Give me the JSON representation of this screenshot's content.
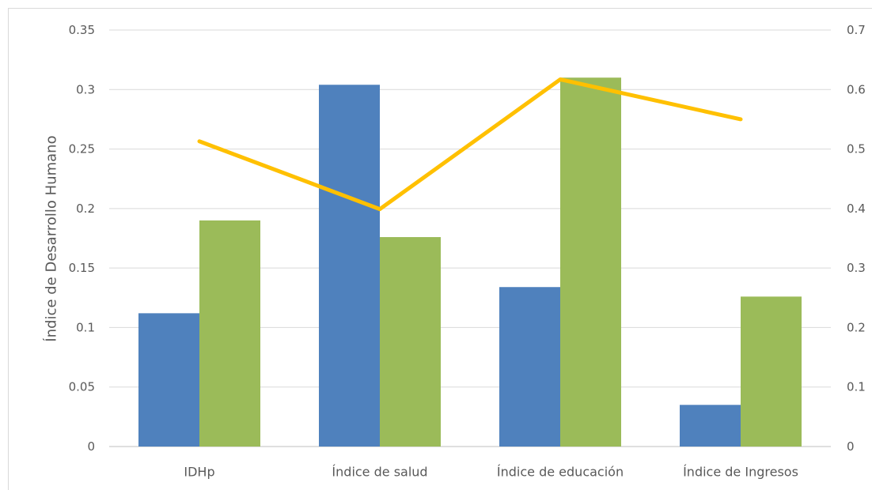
{
  "chart_data": {
    "type": "bar",
    "title": "",
    "categories": [
      "IDHp",
      "Índice de salud",
      "Índice de educación",
      "Índice de Ingresos"
    ],
    "series": [
      {
        "type": "bar",
        "axis": "left",
        "color": "#4F81BD",
        "values": [
          0.112,
          0.304,
          0.134,
          0.035
        ]
      },
      {
        "type": "bar",
        "axis": "left",
        "color": "#9BBB59",
        "values": [
          0.19,
          0.176,
          0.31,
          0.126
        ]
      },
      {
        "type": "line",
        "axis": "right",
        "color": "#FFC000",
        "values": [
          0.513,
          0.399,
          0.617,
          0.55
        ]
      }
    ],
    "ylabel": "Índice de Desarrollo Humano",
    "y2label": "",
    "ylim": [
      0,
      0.35
    ],
    "y2lim": [
      0,
      0.7
    ],
    "yticks": [
      "0",
      "0.05",
      "0.1",
      "0.15",
      "0.2",
      "0.25",
      "0.3",
      "0.35"
    ],
    "y2ticks": [
      "0",
      "0.1",
      "0.2",
      "0.3",
      "0.4",
      "0.5",
      "0.6",
      "0.7"
    ],
    "grid": "horizontal",
    "legend": "none"
  }
}
